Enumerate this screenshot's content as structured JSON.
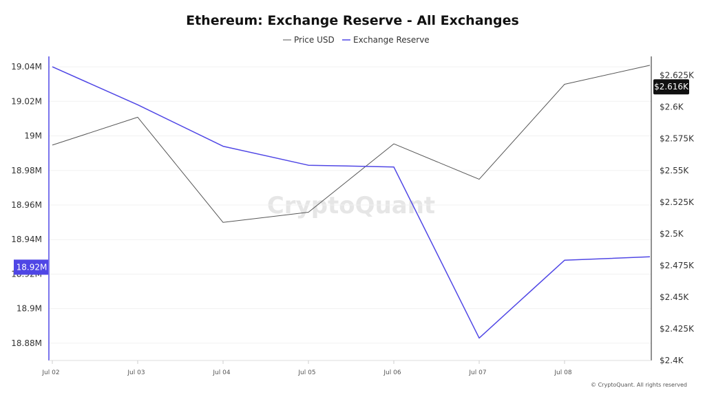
{
  "chart_data": {
    "type": "line",
    "title": "Ethereum: Exchange Reserve - All Exchanges",
    "categories": [
      "Jul 02",
      "Jul 03",
      "Jul 04",
      "Jul 05",
      "Jul 06",
      "Jul 07",
      "Jul 08",
      ""
    ],
    "x_tick_labels": [
      "Jul 02",
      "Jul 03",
      "Jul 04",
      "Jul 05",
      "Jul 06",
      "Jul 07",
      "Jul 08"
    ],
    "series": [
      {
        "name": "Price USD",
        "axis": "right",
        "color": "#555555",
        "values": [
          2570,
          2592,
          2509,
          2517,
          2571,
          2543,
          2618,
          2633
        ]
      },
      {
        "name": "Exchange Reserve",
        "axis": "left",
        "color": "#4f46e5",
        "values": [
          19040000,
          19018000,
          18994000,
          18983000,
          18982000,
          18883000,
          18928000,
          18930000
        ]
      }
    ],
    "y_left": {
      "ticks": [
        18880000,
        18900000,
        18920000,
        18940000,
        18960000,
        18980000,
        19000000,
        19020000,
        19040000
      ],
      "tick_labels": [
        "18.88M",
        "18.9M",
        "18.92M",
        "18.94M",
        "18.96M",
        "18.98M",
        "19M",
        "19.02M",
        "19.04M"
      ],
      "range": [
        18870000,
        19046000
      ]
    },
    "y_right": {
      "ticks": [
        2400,
        2425,
        2450,
        2475,
        2500,
        2525,
        2550,
        2575,
        2600,
        2625
      ],
      "tick_labels": [
        "$2.4K",
        "$2.425K",
        "$2.45K",
        "$2.475K",
        "$2.5K",
        "$2.525K",
        "$2.55K",
        "$2.575K",
        "$2.6K",
        "$2.625K"
      ],
      "range": [
        2400,
        2640
      ]
    },
    "current_left": {
      "value": 18924000,
      "label": "18.92M",
      "color": "#4f46e5"
    },
    "current_right": {
      "value": 2616,
      "label": "$2.616K",
      "color": "#111111"
    },
    "legend_position": "top-center",
    "grid": true
  },
  "watermark": "CryptoQuant",
  "copyright": "© CryptoQuant. All rights reserved"
}
